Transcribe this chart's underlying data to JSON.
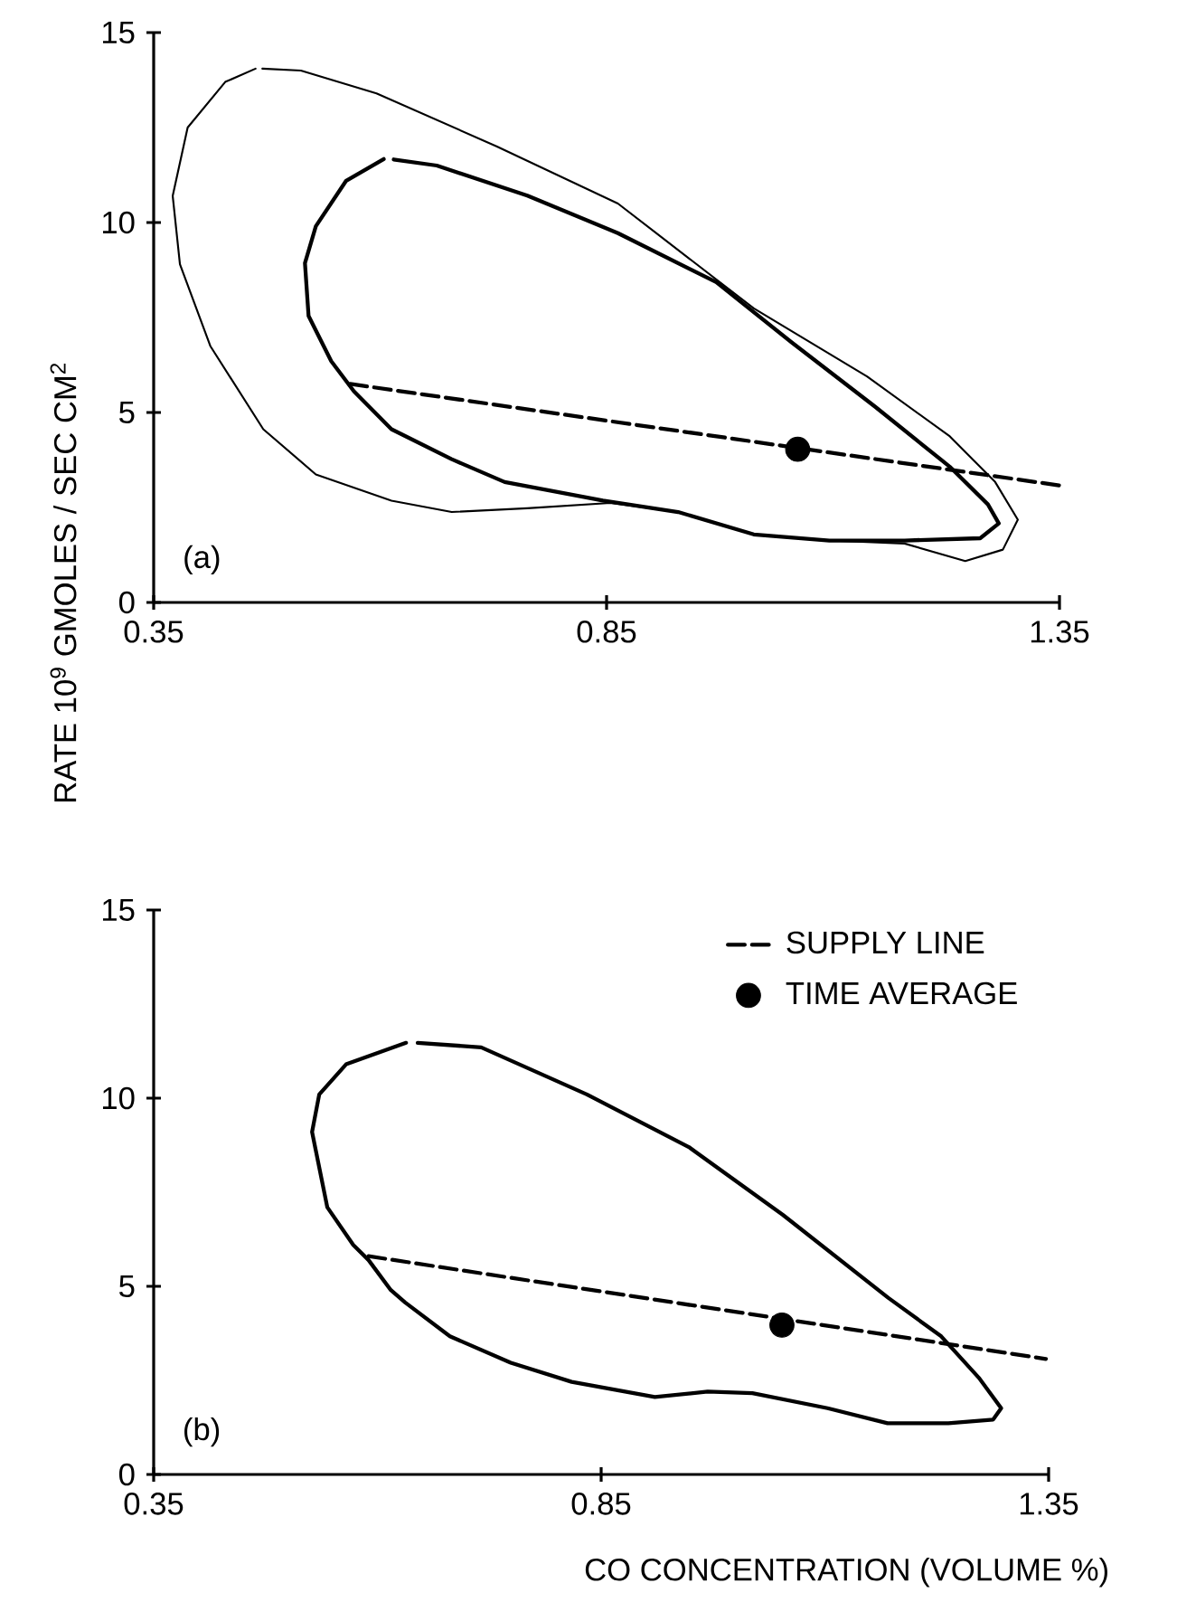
{
  "chart_data": [
    {
      "type": "line",
      "xlim": [
        0.35,
        1.35
      ],
      "ylim": [
        0,
        15
      ],
      "xticks": [
        0.35,
        0.85,
        1.35
      ],
      "yticks": [
        0,
        5,
        10,
        15
      ],
      "annotations": [
        "(a)"
      ],
      "series": [
        {
          "color": "#000000",
          "line_style": "solid",
          "marker": "none",
          "x": [
            0.4625,
            0.429,
            0.3875,
            0.371,
            0.379,
            0.4125,
            0.471,
            0.529,
            0.6125,
            0.679,
            0.7625,
            0.854,
            0.929,
            1.0125,
            1.096,
            1.179,
            1.246,
            1.2875,
            1.304,
            1.279,
            1.229,
            1.1375,
            1.0125,
            0.8625,
            0.729,
            0.596,
            0.5125,
            0.47
          ],
          "values": [
            14.05,
            13.7,
            12.5,
            10.7,
            8.9,
            6.75,
            4.56,
            3.37,
            2.68,
            2.38,
            2.48,
            2.62,
            2.38,
            1.79,
            1.63,
            1.55,
            1.09,
            1.39,
            2.18,
            3.17,
            4.37,
            5.95,
            7.74,
            10.5,
            12.0,
            13.4,
            14.0,
            14.05
          ]
        },
        {
          "color": "#000000",
          "line_style": "solid",
          "marker": "none",
          "x": [
            0.604,
            0.5625,
            0.529,
            0.517,
            0.521,
            0.546,
            0.571,
            0.6125,
            0.679,
            0.7375,
            0.846,
            0.929,
            1.0125,
            1.096,
            1.179,
            1.2625,
            1.283,
            1.271,
            1.229,
            1.146,
            1.054,
            0.971,
            0.8625,
            0.7625,
            0.6625,
            0.615
          ],
          "values": [
            11.67,
            11.1,
            9.9,
            8.93,
            7.54,
            6.35,
            5.56,
            4.56,
            3.77,
            3.17,
            2.68,
            2.38,
            1.79,
            1.63,
            1.63,
            1.69,
            2.08,
            2.58,
            3.57,
            5.16,
            6.85,
            8.43,
            9.72,
            10.71,
            11.5,
            11.66
          ]
        },
        {
          "color": "#000000",
          "line_style": "dashed",
          "marker": "none",
          "x": [
            0.567,
            1.35
          ],
          "values": [
            5.75,
            3.08
          ]
        },
        {
          "type": "scatter",
          "color": "#000000",
          "marker": "circle",
          "x": [
            1.061
          ],
          "values": [
            4.03
          ]
        }
      ]
    },
    {
      "type": "line",
      "xlim": [
        0.35,
        1.35
      ],
      "ylim": [
        0,
        15
      ],
      "xticks": [
        0.35,
        0.85,
        1.35
      ],
      "yticks": [
        0,
        5,
        10,
        15
      ],
      "annotations": [
        "(b)"
      ],
      "legend": "top right",
      "xlabel": "CO  CONCENTRATION   (VOLUME %)",
      "ylabel": "RATE   10$^{9}$  GMOLES / SEC CM$^{2}$",
      "series": [
        {
          "color": "#000000",
          "line_style": "solid",
          "marker": "none",
          "x": [
            0.632,
            0.565,
            0.535,
            0.527,
            0.544,
            0.573,
            0.59,
            0.615,
            0.631,
            0.681,
            0.749,
            0.817,
            0.91,
            0.969,
            1.019,
            1.103,
            1.17,
            1.238,
            1.288,
            1.297,
            1.272,
            1.23,
            1.171,
            1.053,
            0.948,
            0.834,
            0.716,
            0.645
          ],
          "values": [
            11.47,
            10.9,
            10.1,
            9.1,
            7.1,
            6.1,
            5.7,
            4.9,
            4.57,
            3.67,
            2.97,
            2.46,
            2.06,
            2.2,
            2.16,
            1.76,
            1.36,
            1.36,
            1.46,
            1.76,
            2.57,
            3.67,
            4.69,
            6.9,
            8.7,
            10.1,
            11.35,
            11.47
          ]
        },
        {
          "name": "SUPPLY LINE",
          "color": "#000000",
          "line_style": "dashed",
          "marker": "none",
          "x": [
            0.59,
            1.347
          ],
          "values": [
            5.8,
            3.07
          ]
        },
        {
          "name": "TIME AVERAGE",
          "type": "scatter",
          "color": "#000000",
          "marker": "circle",
          "x": [
            1.052
          ],
          "values": [
            3.97
          ]
        }
      ]
    }
  ]
}
